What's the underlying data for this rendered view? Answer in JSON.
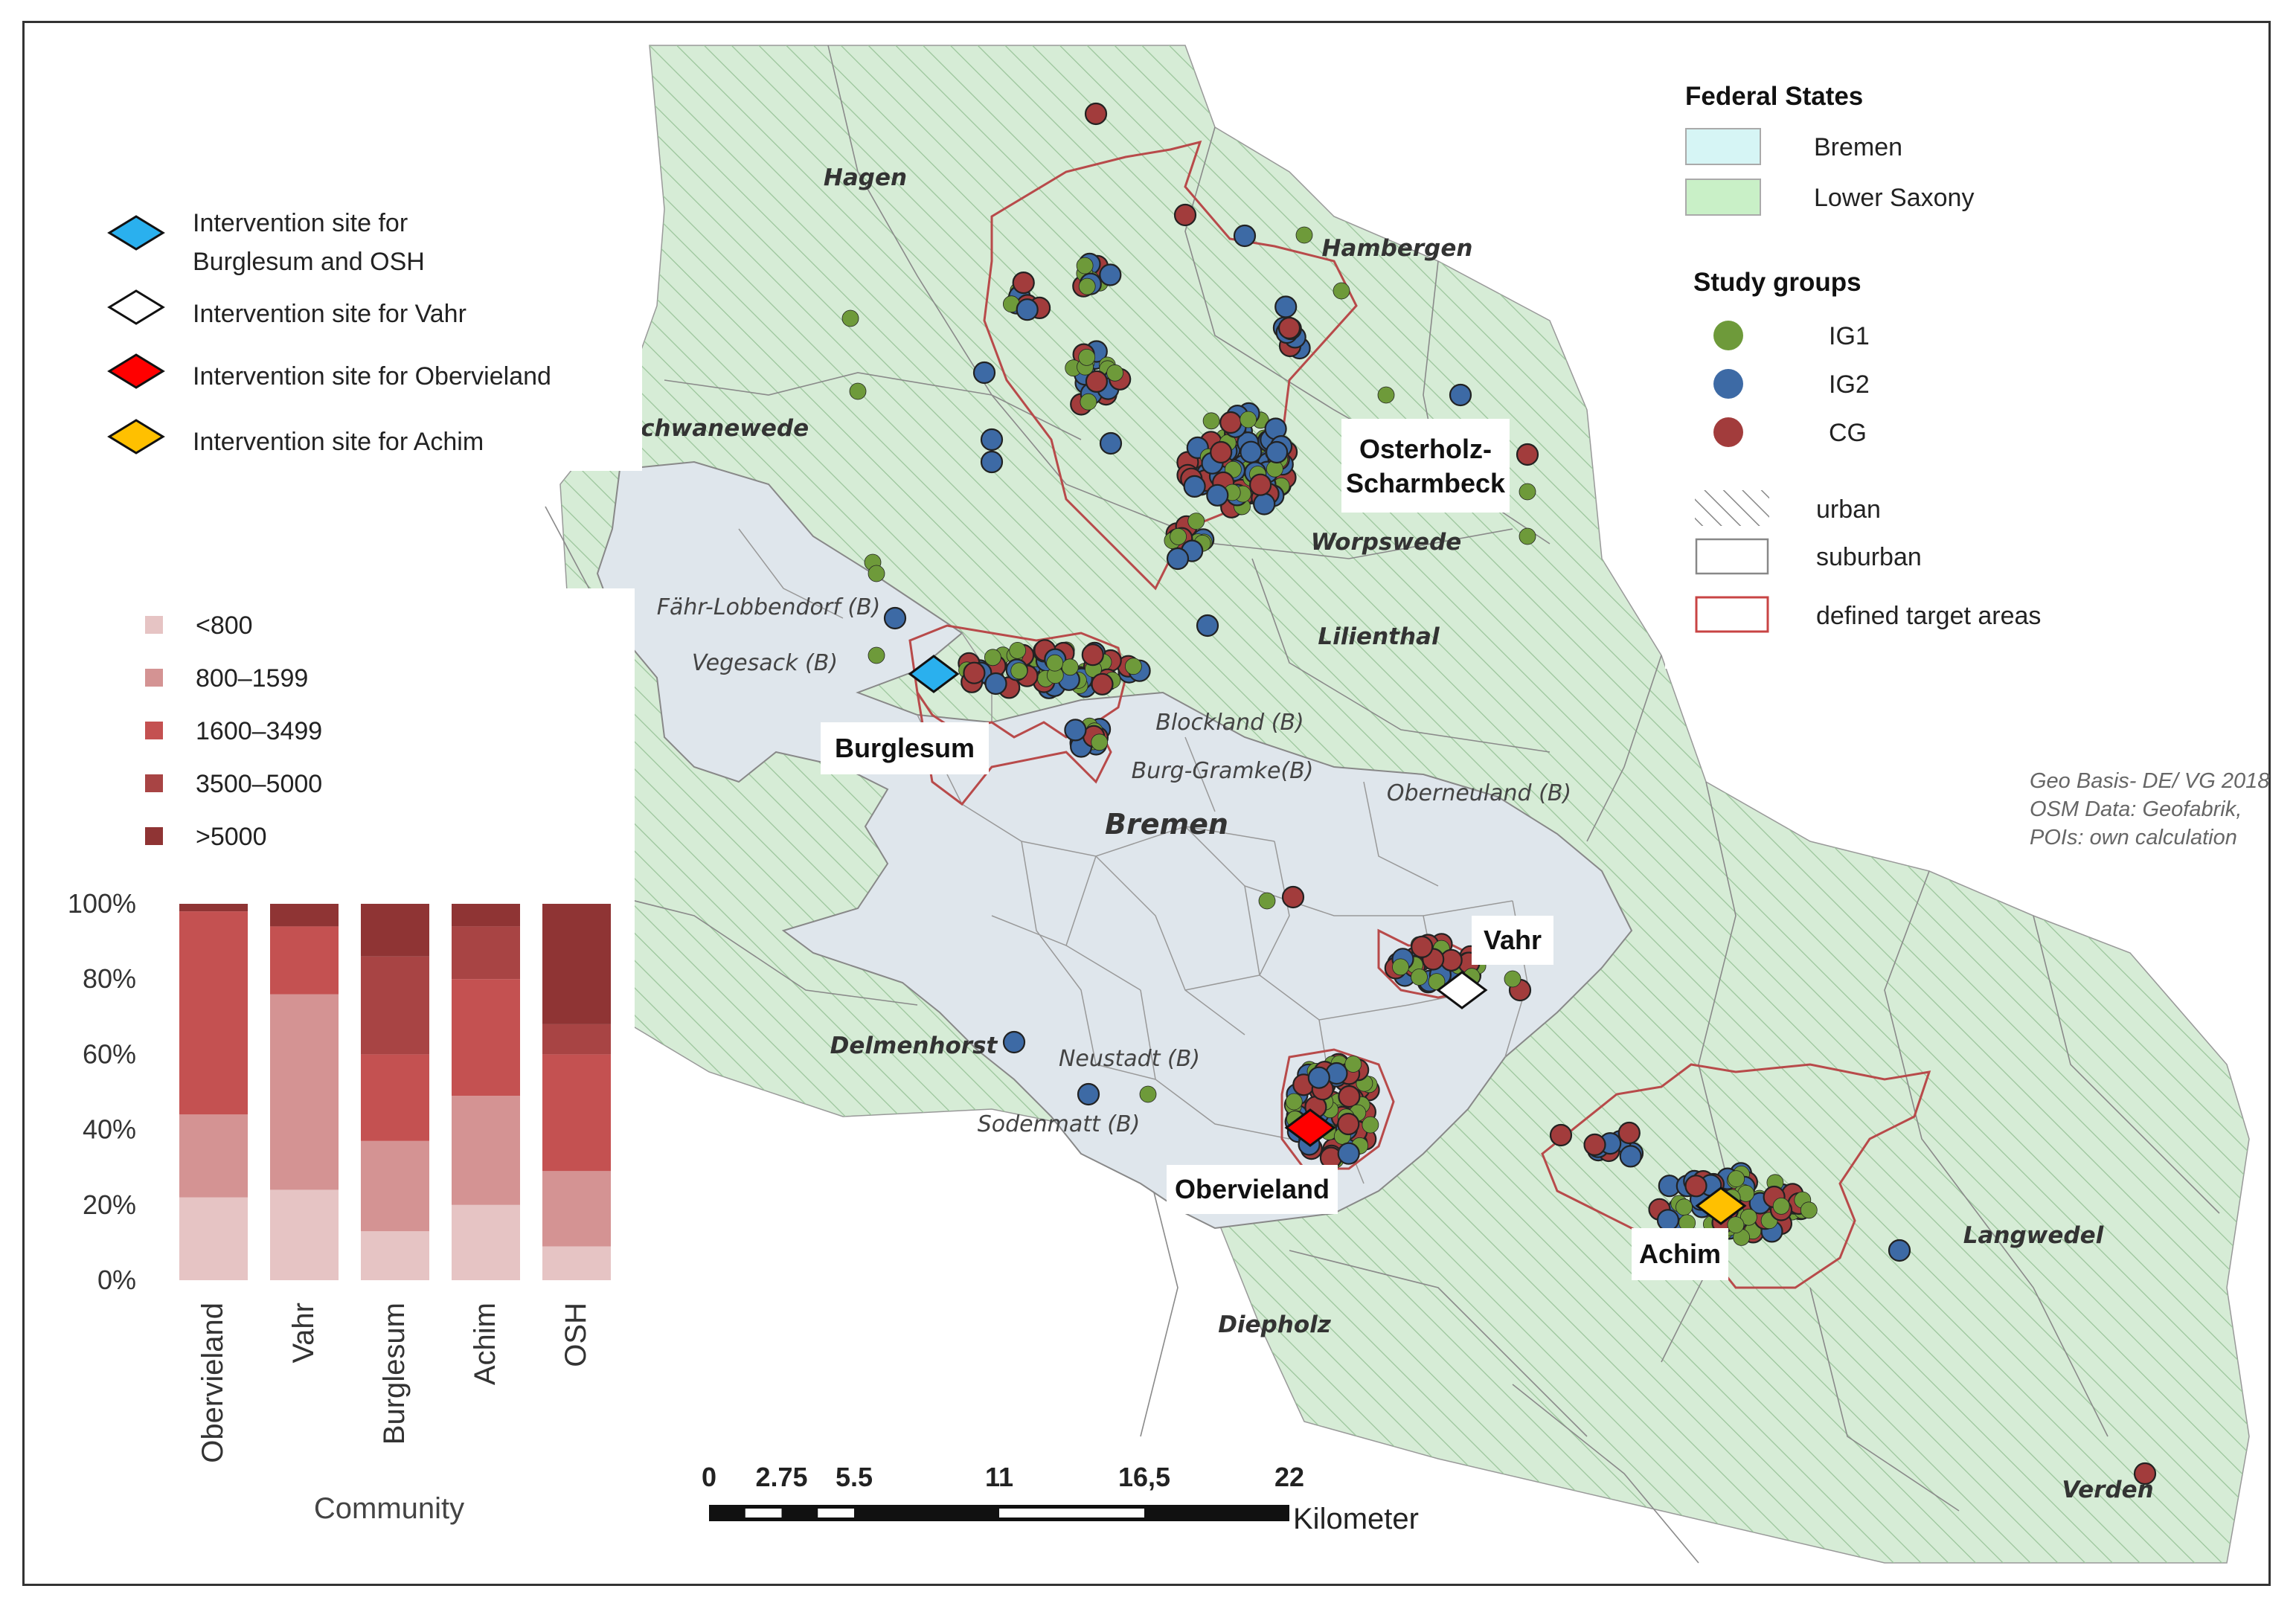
{
  "map": {
    "places": [
      {
        "name": "Hagen",
        "kind": "major"
      },
      {
        "name": "Hambergen",
        "kind": "major"
      },
      {
        "name": "Schwanewede",
        "kind": "major"
      },
      {
        "name": "Worpswede",
        "kind": "major"
      },
      {
        "name": "Lilienthal",
        "kind": "major"
      },
      {
        "name": "Bremen",
        "kind": "major"
      },
      {
        "name": "Delmenhorst",
        "kind": "major"
      },
      {
        "name": "Diepholz",
        "kind": "major"
      },
      {
        "name": "Langwedel",
        "kind": "major"
      },
      {
        "name": "Verden",
        "kind": "major"
      },
      {
        "name": "Fähr-Lobbendorf (B)",
        "kind": "sub"
      },
      {
        "name": "Vegesack (B)",
        "kind": "sub"
      },
      {
        "name": "Blockland (B)",
        "kind": "sub"
      },
      {
        "name": "Burg-Gramke(B)",
        "kind": "sub"
      },
      {
        "name": "Oberneuland (B)",
        "kind": "sub"
      },
      {
        "name": "Neustadt (B)",
        "kind": "sub"
      },
      {
        "name": "Sodenmatt (B)",
        "kind": "sub"
      }
    ],
    "callouts": [
      {
        "id": "osh",
        "lines": [
          "Osterholz-",
          "Scharmbeck"
        ]
      },
      {
        "id": "burglesum",
        "lines": [
          "Burglesum"
        ]
      },
      {
        "id": "vahr",
        "lines": [
          "Vahr"
        ]
      },
      {
        "id": "obervieland",
        "lines": [
          "Obervieland"
        ]
      },
      {
        "id": "achim",
        "lines": [
          "Achim"
        ]
      }
    ],
    "source_lines": [
      "Geo Basis- DE/ VG 2018",
      "OSM Data: Geofabrik,",
      "POIs: own calculation"
    ],
    "scale_bar": {
      "ticks": [
        "0",
        "2.75",
        "5.5",
        "11",
        "16,5",
        "22"
      ],
      "unit": "Kilometer"
    }
  },
  "intervention_legend": [
    {
      "lines": [
        "Intervention site for",
        "Burglesum and OSH"
      ],
      "color": "#2ab0ee",
      "icon": "diamond-blue-icon"
    },
    {
      "lines": [
        "Intervention site for Vahr"
      ],
      "color": "#ffffff",
      "icon": "diamond-white-icon"
    },
    {
      "lines": [
        "Intervention site for Obervieland"
      ],
      "color": "#ff0000",
      "icon": "diamond-red-icon"
    },
    {
      "lines": [
        "Intervention site for Achim"
      ],
      "color": "#ffc000",
      "icon": "diamond-orange-icon"
    }
  ],
  "right_legend": {
    "federal_title": "Federal States",
    "federal": [
      {
        "label": "Bremen",
        "color": "#d6f5f5"
      },
      {
        "label": "Lower Saxony",
        "color": "#c9f0c7"
      }
    ],
    "groups_title": "Study groups",
    "groups": [
      {
        "label": "IG1",
        "color": "#6e9a3a"
      },
      {
        "label": "IG2",
        "color": "#3d6aa5"
      },
      {
        "label": "CG",
        "color": "#a23c3c"
      }
    ],
    "area_types": [
      {
        "label": "urban",
        "icon": "hatch-icon"
      },
      {
        "label": "suburban",
        "icon": "blank-box-icon"
      },
      {
        "label": "defined target areas",
        "icon": "red-outline-icon"
      }
    ]
  },
  "chart_data": {
    "type": "bar",
    "stacked": true,
    "categories": [
      "Obervieland",
      "Vahr",
      "Burglesum",
      "Achim",
      "OSH"
    ],
    "series": [
      {
        "name": "<800",
        "color": "#e6c4c4",
        "values": [
          22,
          24,
          13,
          20,
          9
        ]
      },
      {
        "name": "800–1599",
        "color": "#d49393",
        "values": [
          22,
          52,
          24,
          29,
          20
        ]
      },
      {
        "name": "1600–3499",
        "color": "#c45151",
        "values": [
          54,
          18,
          23,
          31,
          31
        ]
      },
      {
        "name": "3500–5000",
        "color": "#a84444",
        "values": [
          0,
          0,
          26,
          14,
          8
        ]
      },
      {
        "name": ">5000",
        "color": "#8f3434",
        "values": [
          2,
          6,
          14,
          6,
          32
        ]
      }
    ],
    "yticks": [
      "0%",
      "20%",
      "40%",
      "60%",
      "80%",
      "100%"
    ],
    "ylim": [
      0,
      100
    ],
    "xlabel": "Community",
    "legend_placement": "above chart, left"
  }
}
